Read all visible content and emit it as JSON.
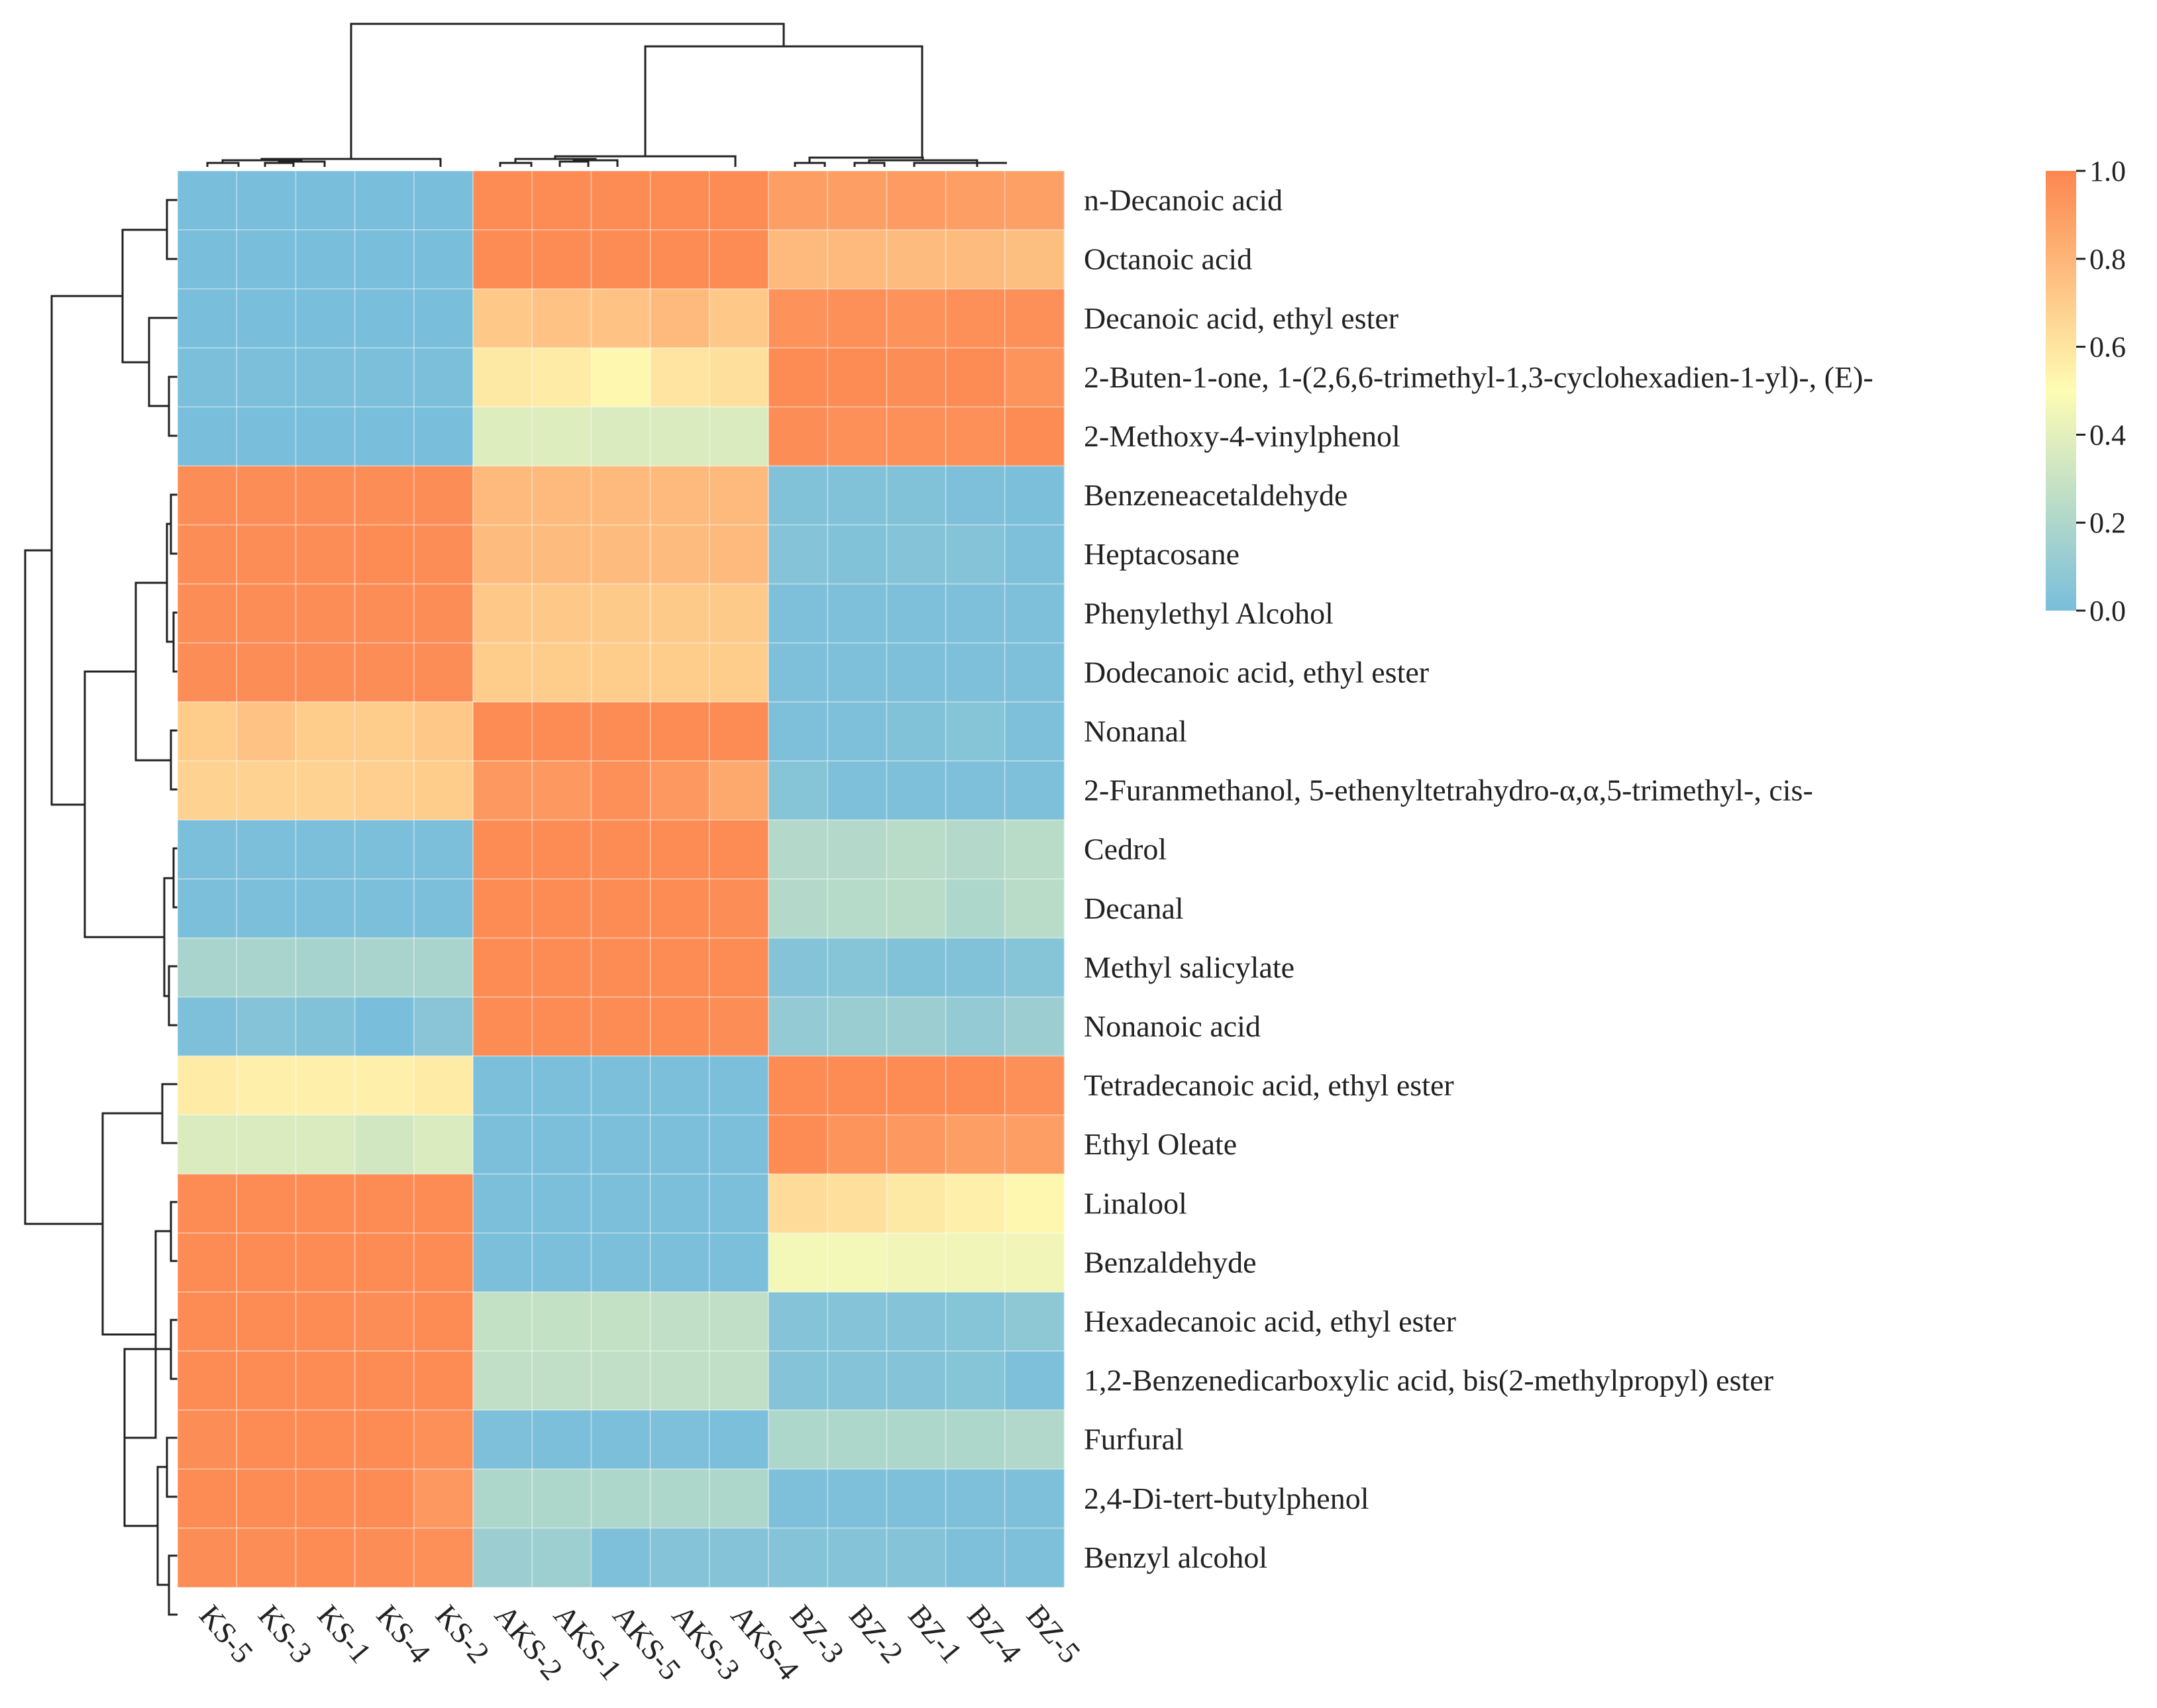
{
  "chart_data": {
    "type": "heatmap",
    "title": "",
    "xlabel": "",
    "ylabel": "",
    "columns": [
      "KS-5",
      "KS-3",
      "KS-1",
      "KS-4",
      "KS-2",
      "AKS-2",
      "AKS-1",
      "AKS-5",
      "AKS-3",
      "AKS-4",
      "BZ-3",
      "BZ-2",
      "BZ-1",
      "BZ-4",
      "BZ-5"
    ],
    "rows": [
      "n-Decanoic acid",
      "Octanoic acid",
      "Decanoic acid, ethyl ester",
      "2-Buten-1-one, 1-(2,6,6-trimethyl-1,3-cyclohexadien-1-yl)-, (E)-",
      "2-Methoxy-4-vinylphenol",
      "Benzeneacetaldehyde",
      "Heptacosane",
      "Phenylethyl Alcohol",
      "Dodecanoic acid, ethyl ester",
      "Nonanal",
      "2-Furanmethanol, 5-ethenyltetrahydro-α,α,5-trimethyl-, cis-",
      "Cedrol",
      "Decanal",
      "Methyl salicylate",
      "Nonanoic acid",
      "Tetradecanoic acid, ethyl ester",
      "Ethyl Oleate",
      "Linalool",
      "Benzaldehyde",
      "Hexadecanoic acid, ethyl ester",
      "1,2-Benzenedicarboxylic acid, bis(2-methylpropyl) ester",
      "Furfural",
      "2,4-Di-tert-butylphenol",
      "Benzyl alcohol"
    ],
    "values": [
      [
        0.0,
        0.0,
        0.0,
        0.0,
        0.0,
        0.98,
        0.98,
        0.98,
        0.98,
        0.98,
        0.9,
        0.9,
        0.91,
        0.9,
        0.89
      ],
      [
        0.0,
        0.0,
        0.0,
        0.0,
        0.0,
        0.98,
        0.98,
        0.98,
        0.98,
        0.98,
        0.78,
        0.78,
        0.77,
        0.77,
        0.76
      ],
      [
        0.0,
        0.0,
        0.0,
        0.0,
        0.0,
        0.72,
        0.74,
        0.74,
        0.78,
        0.72,
        0.95,
        0.96,
        0.95,
        0.96,
        0.96
      ],
      [
        0.01,
        0.01,
        0.01,
        0.01,
        0.01,
        0.58,
        0.57,
        0.52,
        0.6,
        0.62,
        0.98,
        0.98,
        0.97,
        0.98,
        0.94
      ],
      [
        0.0,
        0.0,
        0.0,
        0.0,
        0.0,
        0.38,
        0.38,
        0.36,
        0.36,
        0.36,
        0.97,
        0.96,
        0.96,
        0.96,
        0.98
      ],
      [
        0.97,
        0.97,
        0.97,
        0.97,
        0.97,
        0.78,
        0.78,
        0.78,
        0.78,
        0.78,
        0.03,
        0.03,
        0.03,
        0.02,
        0.01
      ],
      [
        0.97,
        0.97,
        0.97,
        0.98,
        0.97,
        0.77,
        0.77,
        0.77,
        0.77,
        0.78,
        0.04,
        0.03,
        0.04,
        0.04,
        0.02
      ],
      [
        0.97,
        0.97,
        0.97,
        0.97,
        0.97,
        0.72,
        0.72,
        0.71,
        0.71,
        0.71,
        0.02,
        0.02,
        0.02,
        0.02,
        0.02
      ],
      [
        0.97,
        0.97,
        0.97,
        0.97,
        0.97,
        0.7,
        0.7,
        0.7,
        0.7,
        0.7,
        0.02,
        0.02,
        0.02,
        0.02,
        0.02
      ],
      [
        0.7,
        0.74,
        0.7,
        0.7,
        0.72,
        0.98,
        0.98,
        0.98,
        0.98,
        0.98,
        0.02,
        0.02,
        0.03,
        0.05,
        0.02
      ],
      [
        0.68,
        0.68,
        0.68,
        0.69,
        0.7,
        0.92,
        0.92,
        0.96,
        0.92,
        0.85,
        0.05,
        0.02,
        0.02,
        0.02,
        0.02
      ],
      [
        0.01,
        0.01,
        0.01,
        0.01,
        0.01,
        0.98,
        0.98,
        0.98,
        0.98,
        0.98,
        0.22,
        0.22,
        0.24,
        0.22,
        0.24
      ],
      [
        0.01,
        0.01,
        0.01,
        0.01,
        0.01,
        0.98,
        0.98,
        0.98,
        0.98,
        0.97,
        0.22,
        0.23,
        0.24,
        0.2,
        0.24
      ],
      [
        0.18,
        0.18,
        0.17,
        0.18,
        0.18,
        0.98,
        0.98,
        0.98,
        0.98,
        0.98,
        0.04,
        0.05,
        0.03,
        0.03,
        0.05
      ],
      [
        0.02,
        0.04,
        0.03,
        0.0,
        0.06,
        0.98,
        0.98,
        0.98,
        0.98,
        0.97,
        0.1,
        0.12,
        0.13,
        0.1,
        0.13
      ],
      [
        0.57,
        0.55,
        0.55,
        0.55,
        0.57,
        0.01,
        0.01,
        0.01,
        0.01,
        0.01,
        0.98,
        0.98,
        0.98,
        0.98,
        0.96
      ],
      [
        0.36,
        0.36,
        0.36,
        0.33,
        0.36,
        0.01,
        0.01,
        0.01,
        0.01,
        0.01,
        0.98,
        0.94,
        0.92,
        0.9,
        0.9
      ],
      [
        0.98,
        0.98,
        0.98,
        0.98,
        0.98,
        0.01,
        0.01,
        0.01,
        0.01,
        0.01,
        0.64,
        0.62,
        0.58,
        0.55,
        0.52
      ],
      [
        0.98,
        0.98,
        0.98,
        0.98,
        0.98,
        0.01,
        0.01,
        0.01,
        0.01,
        0.01,
        0.46,
        0.46,
        0.45,
        0.45,
        0.45
      ],
      [
        0.98,
        0.98,
        0.98,
        0.97,
        0.98,
        0.28,
        0.28,
        0.28,
        0.27,
        0.27,
        0.04,
        0.04,
        0.04,
        0.05,
        0.08
      ],
      [
        0.98,
        0.98,
        0.98,
        0.98,
        0.98,
        0.27,
        0.27,
        0.27,
        0.27,
        0.27,
        0.04,
        0.04,
        0.04,
        0.05,
        0.02
      ],
      [
        0.97,
        0.98,
        0.98,
        0.98,
        0.96,
        0.02,
        0.01,
        0.01,
        0.02,
        0.01,
        0.2,
        0.2,
        0.2,
        0.2,
        0.21
      ],
      [
        0.98,
        0.98,
        0.98,
        0.98,
        0.92,
        0.2,
        0.2,
        0.2,
        0.2,
        0.2,
        0.02,
        0.02,
        0.02,
        0.02,
        0.02
      ],
      [
        0.97,
        0.97,
        0.98,
        0.97,
        0.96,
        0.13,
        0.14,
        0.02,
        0.04,
        0.04,
        0.04,
        0.04,
        0.04,
        0.02,
        0.02
      ]
    ],
    "colorbar": {
      "range": [
        0.0,
        1.0
      ],
      "ticks": [
        "1.0",
        "0.8",
        "0.6",
        "0.4",
        "0.2",
        "0.0"
      ],
      "tick_values": [
        1.0,
        0.8,
        0.6,
        0.4,
        0.2,
        0.0
      ],
      "colors": [
        "#79bedb",
        "#fefcb4",
        "#fd8650"
      ]
    },
    "column_dendrogram": "top",
    "row_dendrogram": "left"
  }
}
